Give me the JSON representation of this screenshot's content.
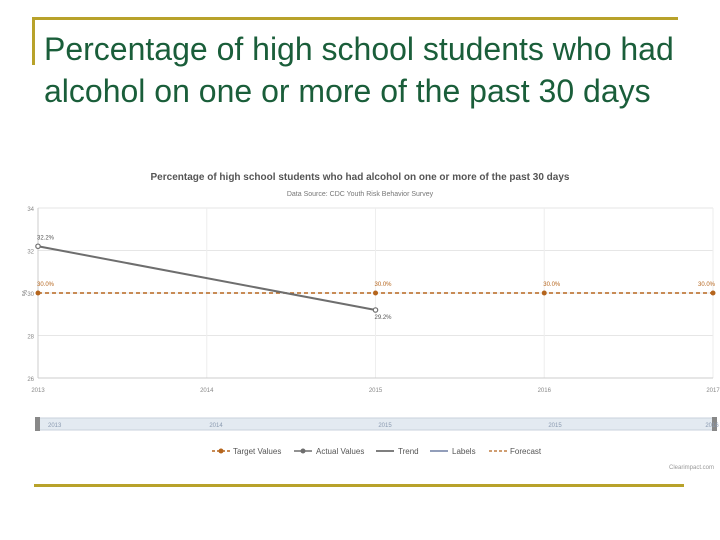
{
  "slide": {
    "title": "Percentage of high school students who had alcohol on one or more of the past 30 days"
  },
  "chart_data": {
    "type": "line",
    "title": "Percentage of high school students who had alcohol on one or more of the past 30 days",
    "subtitle": "Data Source: CDC Youth Risk Behavior Survey",
    "ylabel": "%",
    "xlabel": "",
    "x": [
      2013,
      2014,
      2015,
      2016,
      2017
    ],
    "ylim": [
      26,
      34
    ],
    "yticks": [
      26,
      28,
      30,
      32,
      34
    ],
    "grid": true,
    "series": [
      {
        "name": "Target Values",
        "x": [
          2013,
          2015,
          2016,
          2017
        ],
        "values": [
          30.0,
          30.0,
          30.0,
          30.0
        ],
        "labels": [
          "30.0%",
          "30.0%",
          "30.0%",
          "30.0%"
        ],
        "color": "#b5651d",
        "style": "dashed"
      },
      {
        "name": "Actual Values",
        "x": [
          2013,
          2015
        ],
        "values": [
          32.2,
          29.2
        ],
        "labels": [
          "32.2%",
          "29.2%"
        ],
        "color": "#6e6e6e",
        "style": "solid"
      }
    ],
    "legend": {
      "position": "bottom",
      "items": [
        "Target Values",
        "Actual Values",
        "Trend",
        "Labels",
        "Forecast"
      ]
    },
    "navigator": {
      "labels": [
        "2013",
        "2014",
        "2015",
        "2015",
        "2016"
      ]
    },
    "credit": "Clearimpact.com",
    "colors": {
      "target": "#b5651d",
      "actual": "#6e6e6e",
      "trend": "#333333",
      "labels": "#6e7fa3",
      "forecast": "#b5651d",
      "title": "#1a5e3a",
      "rule": "#b8a22a"
    }
  }
}
